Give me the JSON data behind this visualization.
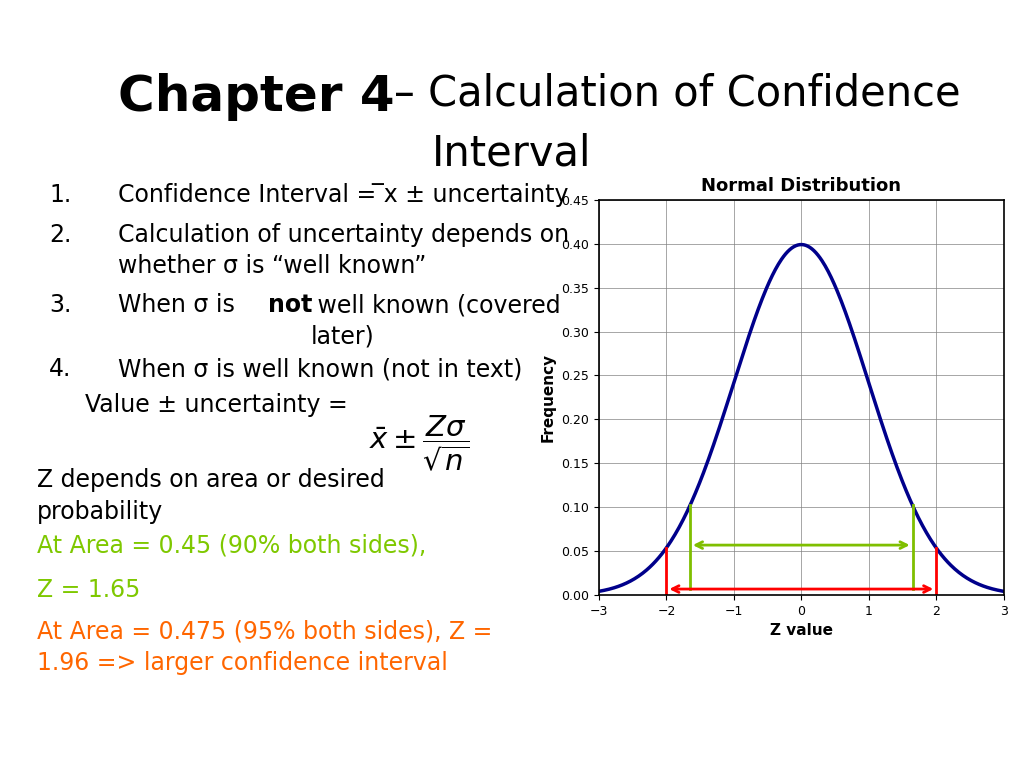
{
  "title_bold": "Chapter 4",
  "title_normal": " – Calculation of Confidence\nInterval",
  "bg_color": "#ffffff",
  "plot_title": "Normal Distribution",
  "plot_xlabel": "Z value",
  "plot_ylabel": "Frequency",
  "plot_xlim": [
    -3,
    3
  ],
  "plot_ylim": [
    0,
    0.45
  ],
  "plot_yticks": [
    0,
    0.05,
    0.1,
    0.15,
    0.2,
    0.25,
    0.3,
    0.35,
    0.4,
    0.45
  ],
  "plot_xticks": [
    -3,
    -2,
    -1,
    0,
    1,
    2,
    3
  ],
  "curve_color": "#00008B",
  "red_arrow_color": "#FF0000",
  "green_arrow_color": "#7FBF00",
  "green_text_color": "#7EC800",
  "orange_text_color": "#FF6600",
  "black_color": "#000000",
  "num1": "1.",
  "item1": "Confidence Interval = ̅x ± uncertainty",
  "num2": "2.",
  "item2": "Calculation of uncertainty depends on\nwhether σ is “well known”",
  "num3": "3.",
  "item3a": "When σ is ",
  "item3b": "not",
  "item3c": " well known (covered\nlater)",
  "num4": "4.",
  "item4": "When σ is well known (not in text)",
  "item5": "Value ± uncertainty = ",
  "item6": "Z depends on area or desired\nprobability",
  "item7": "At Area = 0.45 (90% both sides),",
  "item8": "Z = 1.65",
  "item9": "At Area = 0.475 (95% both sides), Z =\n1.96 => larger confidence interval"
}
